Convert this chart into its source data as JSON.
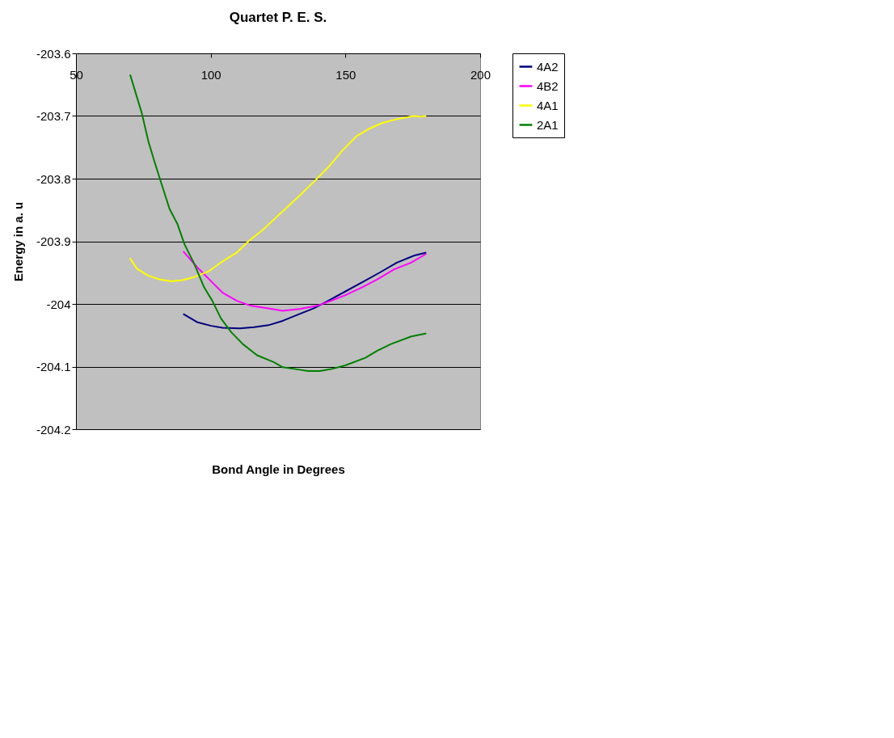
{
  "chart_data": {
    "type": "line",
    "title": "Quartet P. E. S.",
    "xlabel": "Bond Angle in Degrees",
    "ylabel": "Energy in a. u",
    "xlim": [
      50,
      200
    ],
    "ylim": [
      -204.2,
      -203.6
    ],
    "xticks": [
      50,
      100,
      150,
      200
    ],
    "yticks": [
      -204.2,
      -204.1,
      {
        "value": -204,
        "label": "-204"
      },
      -203.9,
      -203.8,
      -203.7,
      -203.6
    ],
    "grid": "y",
    "legend": "right",
    "line_style": "solid",
    "marker": "none",
    "series": [
      {
        "name": "4A2",
        "color": "#000080",
        "x": [
          89.8,
          94.9,
          100.2,
          104.4,
          110.8,
          116.1,
          121.4,
          126.7,
          133,
          138.3,
          143.6,
          150,
          156.4,
          162.7,
          169.1,
          175.4,
          180
        ],
        "values": [
          -204.016,
          -204.029,
          -204.035,
          -204.038,
          -204.039,
          -204.037,
          -204.034,
          -204.027,
          -204.016,
          -204.007,
          -203.995,
          -203.98,
          -203.965,
          -203.95,
          -203.934,
          -203.923,
          -203.918
        ]
      },
      {
        "name": "4B2",
        "color": "#ff00ff",
        "x": [
          89.8,
          94.9,
          100.2,
          104.4,
          109.7,
          115,
          121.4,
          126.7,
          133,
          139.4,
          144.7,
          150,
          156.4,
          161.7,
          168,
          174.4,
          180
        ],
        "values": [
          -203.916,
          -203.941,
          -203.964,
          -203.982,
          -203.995,
          -204.003,
          -204.007,
          -204.011,
          -204.008,
          -204.003,
          -203.995,
          -203.986,
          -203.973,
          -203.961,
          -203.945,
          -203.934,
          -203.92
        ]
      },
      {
        "name": "4A1",
        "color": "#ffff00",
        "x": [
          70,
          72.7,
          76.9,
          81.1,
          85.4,
          89.6,
          93.9,
          99.2,
          104.4,
          109.7,
          114,
          119.3,
          123.5,
          128.8,
          133,
          138.3,
          143.6,
          148.9,
          154.2,
          158.5,
          163.8,
          169.1,
          175.4,
          178,
          180
        ],
        "values": [
          -203.927,
          -203.944,
          -203.955,
          -203.961,
          -203.964,
          -203.962,
          -203.957,
          -203.948,
          -203.932,
          -203.918,
          -203.9,
          -203.882,
          -203.865,
          -203.844,
          -203.827,
          -203.805,
          -203.782,
          -203.755,
          -203.732,
          -203.721,
          -203.711,
          -203.705,
          -203.7,
          -203.701,
          -203.7
        ]
      },
      {
        "name": "2A1",
        "color": "#008000",
        "x": [
          70.1,
          74.4,
          76.9,
          79,
          81.8,
          84.7,
          87.7,
          90.3,
          93.9,
          97.5,
          100.6,
          103.8,
          107.6,
          111.9,
          117.2,
          123.5,
          126.7,
          133,
          136.2,
          140.5,
          144.7,
          150,
          157.4,
          161.7,
          166.9,
          174.4,
          180
        ],
        "values": [
          -203.634,
          -203.695,
          -203.741,
          -203.771,
          -203.809,
          -203.848,
          -203.873,
          -203.905,
          -203.936,
          -203.973,
          -203.995,
          -204.023,
          -204.045,
          -204.064,
          -204.082,
          -204.093,
          -204.101,
          -204.105,
          -204.107,
          -204.107,
          -204.104,
          -204.098,
          -204.086,
          -204.075,
          -204.064,
          -204.052,
          -204.047
        ]
      }
    ]
  }
}
